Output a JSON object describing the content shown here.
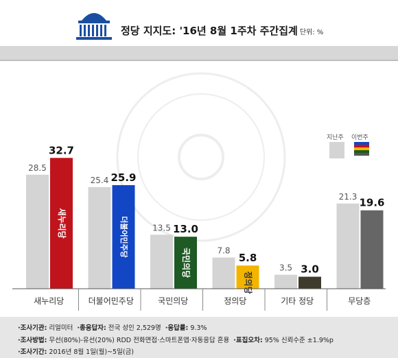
{
  "header": {
    "title": "정당 지지도: '16년 8월 1주차 주간집계",
    "unit": "단위: %"
  },
  "legend": {
    "prev": "지난주",
    "current": "이번주"
  },
  "footer": {
    "r1": {
      "agency_label": "·조사기관:",
      "agency": "리얼미터",
      "sample_label": "·총응답자:",
      "sample": "전국 성인 2,529명",
      "rate_label": "·응답률:",
      "rate": "9.3%"
    },
    "r2": {
      "method_label": "·조사방법:",
      "method": "무선(80%)-유선(20%) RDD 전화면접·스마트폰앱·자동응답 혼용",
      "error_label": "·표집오차:",
      "error": "95% 신뢰수준 ±1.9%p"
    },
    "r3": {
      "period_label": "·조사기간:",
      "period": "2016년 8월 1일(월)~5일(금)"
    }
  },
  "colors": {
    "prev": "#d4d4d4",
    "current": [
      "#c0141c",
      "#1346c4",
      "#1e5a23",
      "#f3b400",
      "#3e3a2c",
      "#666666"
    ],
    "legend_current_stripes": [
      "#1346c4",
      "#c0141c",
      "#f3b400",
      "#1e5a23",
      "#555555"
    ]
  },
  "chart_data": {
    "type": "bar",
    "categories": [
      "새누리당",
      "더불어민주당",
      "국민의당",
      "정의당",
      "기타 정당",
      "무당층"
    ],
    "series": [
      {
        "name": "지난주",
        "values": [
          28.5,
          25.4,
          13.5,
          7.8,
          3.5,
          21.3
        ]
      },
      {
        "name": "이번주",
        "values": [
          32.7,
          25.9,
          13.0,
          5.8,
          3.0,
          19.6
        ]
      }
    ],
    "bar_marks": [
      "새누리당",
      "더불어민주당",
      "국민의당",
      "정의당",
      "",
      ""
    ],
    "ylim": [
      0,
      36
    ],
    "grid": false,
    "legend_position": "top-right"
  }
}
